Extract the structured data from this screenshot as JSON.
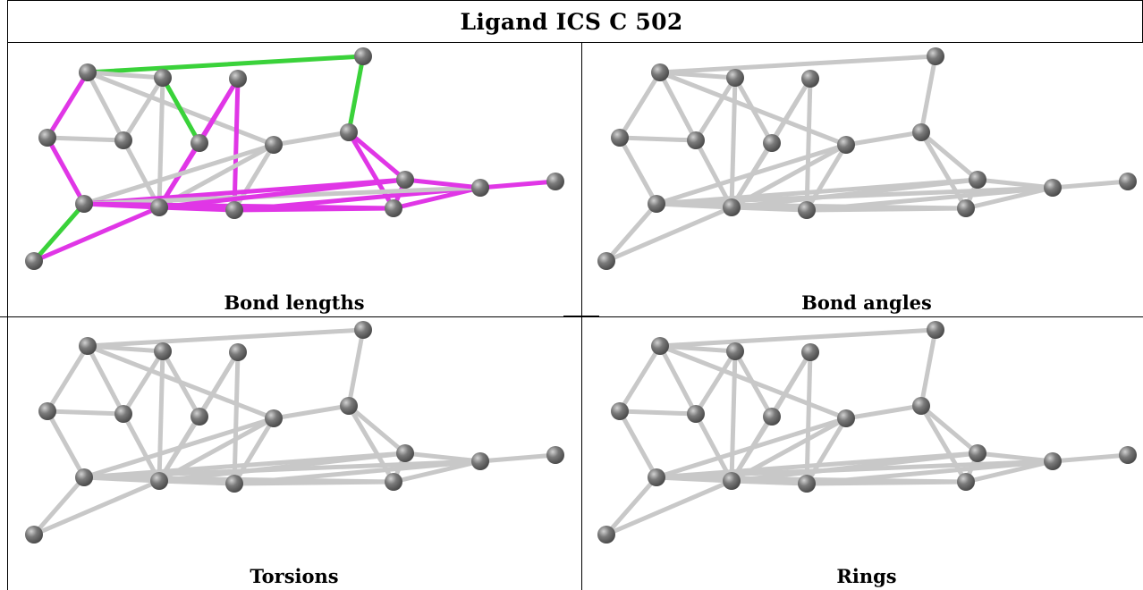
{
  "title": "Ligand ICS C 502",
  "panels": [
    {
      "caption": "Bond lengths",
      "highlight": true
    },
    {
      "caption": "Bond angles",
      "highlight": false
    },
    {
      "caption": "Torsions",
      "highlight": false
    },
    {
      "caption": "Rings",
      "highlight": false
    }
  ],
  "colors": {
    "bond": "#c8c8c8",
    "atom": "#7a7a7a",
    "highlight_green": "#3ad23a",
    "highlight_magenta": "#e036e6"
  }
}
